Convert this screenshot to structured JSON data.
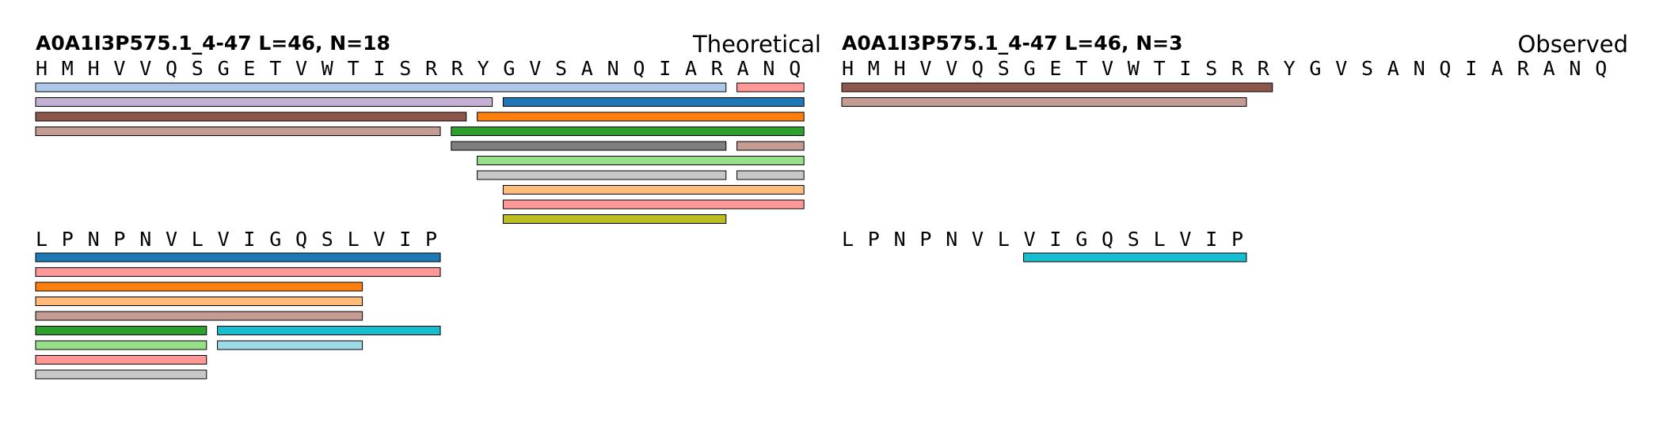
{
  "panels": [
    {
      "id": "theoretical",
      "title": "A0A1I3P575.1_4-47  L=46, N=18",
      "mode_label": "Theoretical",
      "rows": [
        {
          "sequence": "HMHVVQSGETVWTISRRYGVSANQIARANQ",
          "peptides": [
            {
              "start": 0,
              "end": 26,
              "color": "#aec7e8"
            },
            {
              "start": 27,
              "end": 29,
              "color": "#ff9896"
            },
            {
              "start": 0,
              "end": 17,
              "color": "#c5b0d5"
            },
            {
              "start": 18,
              "end": 29,
              "color": "#1f77b4"
            },
            {
              "start": 0,
              "end": 16,
              "color": "#8c564b"
            },
            {
              "start": 17,
              "end": 29,
              "color": "#ff7f0e"
            },
            {
              "start": 0,
              "end": 15,
              "color": "#c49c94"
            },
            {
              "start": 16,
              "end": 29,
              "color": "#2ca02c"
            },
            {
              "start": 16,
              "end": 26,
              "color": "#7f7f7f"
            },
            {
              "start": 27,
              "end": 29,
              "color": "#c49c94"
            },
            {
              "start": 17,
              "end": 29,
              "color": "#98df8a"
            },
            {
              "start": 17,
              "end": 26,
              "color": "#c7c7c7"
            },
            {
              "start": 27,
              "end": 29,
              "color": "#c7c7c7"
            },
            {
              "start": 18,
              "end": 29,
              "color": "#ffbb78"
            },
            {
              "start": 18,
              "end": 29,
              "color": "#ff9896"
            },
            {
              "start": 18,
              "end": 26,
              "color": "#bcbd22"
            }
          ]
        },
        {
          "sequence": "LPNPNVLVIGQSLVIP",
          "peptides": [
            {
              "start": 0,
              "end": 15,
              "color": "#1f77b4"
            },
            {
              "start": 0,
              "end": 15,
              "color": "#ff9896"
            },
            {
              "start": 0,
              "end": 12,
              "color": "#ff7f0e"
            },
            {
              "start": 0,
              "end": 12,
              "color": "#ffbb78"
            },
            {
              "start": 0,
              "end": 12,
              "color": "#c49c94"
            },
            {
              "start": 0,
              "end": 6,
              "color": "#2ca02c"
            },
            {
              "start": 7,
              "end": 15,
              "color": "#17becf"
            },
            {
              "start": 0,
              "end": 6,
              "color": "#98df8a"
            },
            {
              "start": 7,
              "end": 12,
              "color": "#9edae5"
            },
            {
              "start": 0,
              "end": 6,
              "color": "#ff9896"
            },
            {
              "start": 0,
              "end": 6,
              "color": "#c7c7c7"
            }
          ]
        }
      ]
    },
    {
      "id": "observed",
      "title": "A0A1I3P575.1_4-47  L=46, N=3",
      "mode_label": "Observed",
      "rows": [
        {
          "sequence": "HMHVVQSGETVWTISRRYGVSANQIARANQ",
          "peptides": [
            {
              "start": 0,
              "end": 16,
              "color": "#8c564b"
            },
            {
              "start": 0,
              "end": 15,
              "color": "#c49c94"
            }
          ]
        },
        {
          "sequence": "LPNPNVLVIGQSLVIP",
          "peptides": [
            {
              "start": 7,
              "end": 15,
              "color": "#17becf"
            }
          ]
        }
      ]
    }
  ]
}
